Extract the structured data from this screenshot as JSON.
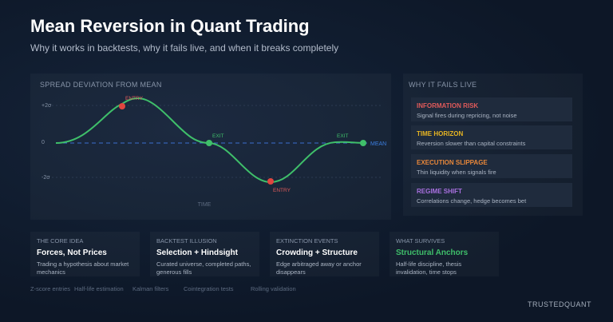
{
  "header": {
    "title": "Mean Reversion in Quant Trading",
    "subtitle": "Why it works in backtests, why it fails live, and when it breaks completely"
  },
  "spread_panel": {
    "title": "SPREAD DEVIATION FROM MEAN",
    "levels": [
      "+2σ",
      "0",
      "-2σ"
    ],
    "x_label": "TIME",
    "mean_label": "MEAN",
    "markers": [
      "ENTRY",
      "EXIT",
      "ENTRY",
      "EXIT"
    ]
  },
  "failures": {
    "title": "WHY IT FAILS LIVE",
    "items": [
      {
        "title": "INFORMATION RISK",
        "text": "Signal fires during repricing, not noise"
      },
      {
        "title": "TIME HORIZON",
        "text": "Reversion slower than capital constraints"
      },
      {
        "title": "EXECUTION SLIPPAGE",
        "text": "Thin liquidity when signals fire"
      },
      {
        "title": "REGIME SHIFT",
        "text": "Correlations change, hedge becomes bet"
      }
    ]
  },
  "cards": [
    {
      "label": "THE CORE IDEA",
      "title": "Forces, Not Prices",
      "text": "Trading a hypothesis about market mechanics"
    },
    {
      "label": "BACKTEST ILLUSION",
      "title": "Selection + Hindsight",
      "text": "Curated universe, completed paths, generous fills"
    },
    {
      "label": "EXTINCTION EVENTS",
      "title": "Crowding + Structure",
      "text": "Edge arbitraged away or anchor disappears"
    },
    {
      "label": "WHAT SURVIVES",
      "title": "Structural Anchors",
      "text": "Half-life discipline, thesis invalidation, time stops"
    }
  ],
  "tags": [
    "Z-score entries",
    "Half-life estimation",
    "Kalman filters",
    "Cointegration tests",
    "Rolling validation"
  ],
  "brand": "TRUSTEDQUANT"
}
